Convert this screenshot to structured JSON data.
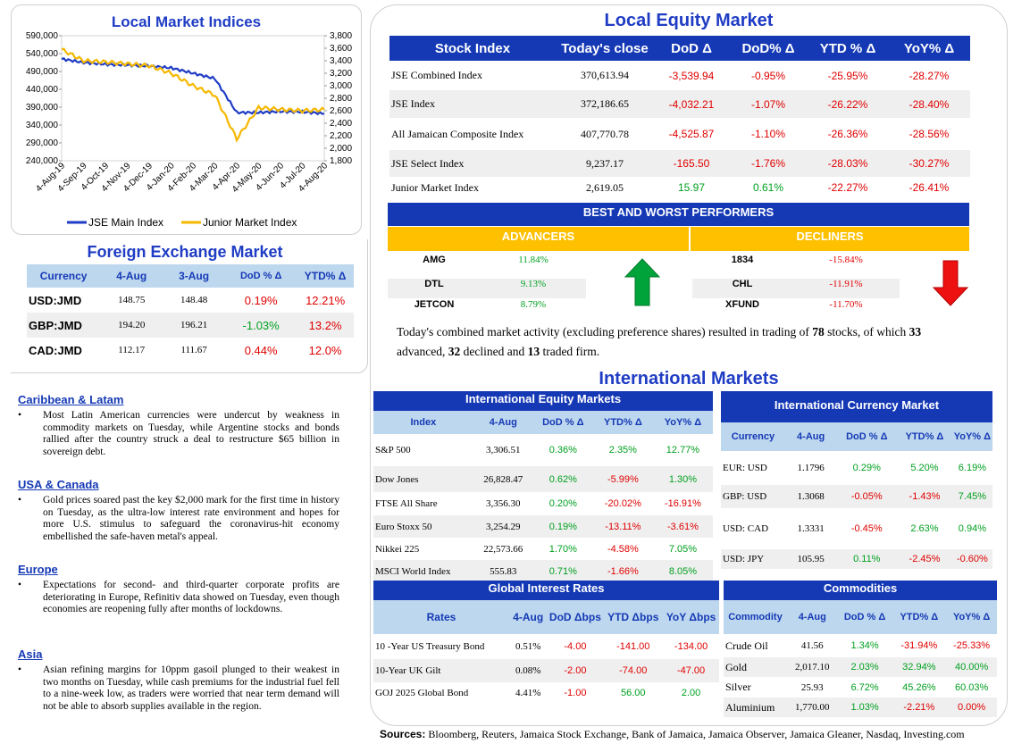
{
  "local_indices": {
    "title": "Local Market Indices",
    "legend": [
      "JSE Main Index",
      "Junior Market Index"
    ],
    "colors": {
      "main": "#1f3cc4",
      "junior": "#f5b800"
    }
  },
  "chart_data": {
    "type": "line",
    "title": "Local Market Indices",
    "x": [
      "4-Aug-19",
      "4-Sep-19",
      "4-Oct-19",
      "4-Nov-19",
      "4-Dec-19",
      "4-Jan-20",
      "4-Feb-20",
      "4-Mar-20",
      "4-Apr-20",
      "4-May-20",
      "4-Jun-20",
      "4-Jul-20",
      "4-Aug-20"
    ],
    "y_left_ticks": [
      "590,000",
      "540,000",
      "490,000",
      "440,000",
      "390,000",
      "340,000",
      "290,000",
      "240,000"
    ],
    "y_right_ticks": [
      "3,800",
      "3,600",
      "3,400",
      "3,200",
      "3,000",
      "2,800",
      "2,600",
      "2,400",
      "2,200",
      "2,000",
      "1,800"
    ],
    "ylim_left": [
      240000,
      590000
    ],
    "ylim_right": [
      1800,
      3800
    ],
    "series": [
      {
        "name": "JSE Main Index",
        "axis": "left",
        "values": [
          525000,
          515000,
          510000,
          508000,
          505000,
          500000,
          485000,
          470000,
          375000,
          375000,
          378000,
          377000,
          372000
        ]
      },
      {
        "name": "Junior Market Index",
        "axis": "right",
        "values": [
          3580,
          3400,
          3380,
          3350,
          3320,
          3200,
          3000,
          2850,
          2150,
          2650,
          2620,
          2600,
          2620
        ]
      }
    ]
  },
  "fx": {
    "title": "Foreign Exchange Market",
    "headers": [
      "Currency",
      "4-Aug",
      "3-Aug",
      "DoD % Δ",
      "YTD% Δ"
    ],
    "rows": [
      {
        "cur": "USD:JMD",
        "a": "148.75",
        "b": "148.48",
        "dod": "0.19%",
        "ytd": "12.21%",
        "dod_s": "neg",
        "ytd_s": "neg"
      },
      {
        "cur": "GBP:JMD",
        "a": "194.20",
        "b": "196.21",
        "dod": "-1.03%",
        "ytd": "13.2%",
        "dod_s": "pos",
        "ytd_s": "neg"
      },
      {
        "cur": "CAD:JMD",
        "a": "112.17",
        "b": "111.67",
        "dod": "0.44%",
        "ytd": "12.0%",
        "dod_s": "neg",
        "ytd_s": "neg"
      }
    ]
  },
  "news": [
    {
      "heading": "Caribbean & Latam",
      "text": "Most Latin American currencies were undercut by weakness in commodity markets on Tuesday, while Argentine stocks and bonds rallied after the country struck a deal to restructure $65 billion in sovereign debt."
    },
    {
      "heading": "USA & Canada",
      "text": "Gold prices soared past the key $2,000 mark for the first time in history on Tuesday, as the ultra-low interest rate environment and hopes for more U.S. stimulus to safeguard the coronavirus-hit economy embellished the safe-haven metal's appeal."
    },
    {
      "heading": "Europe",
      "text": "Expectations for second- and third-quarter corporate profits are deteriorating in Europe, Refinitiv data showed on Tuesday, even though economies are reopening fully after months of lockdowns."
    },
    {
      "heading": "Asia",
      "text": "Asian refining margins for 10ppm gasoil plunged to their weakest in two months on Tuesday, while cash premiums for the industrial fuel fell to a nine-week low, as traders were worried that near term demand will not be able to absorb supplies available in the region."
    }
  ],
  "equity": {
    "title": "Local Equity Market",
    "headers": [
      "Stock Index",
      "Today's close",
      "DoD  Δ",
      "DoD% Δ",
      "YTD % Δ",
      "YoY% Δ"
    ],
    "rows": [
      {
        "name": "JSE Combined Index",
        "close": "370,613.94",
        "dod": "-3,539.94",
        "dodp": "-0.95%",
        "ytd": "-25.95%",
        "yoy": "-28.27%",
        "s": "neg"
      },
      {
        "name": "JSE Index",
        "close": "372,186.65",
        "dod": "-4,032.21",
        "dodp": "-1.07%",
        "ytd": "-26.22%",
        "yoy": "-28.40%",
        "s": "neg"
      },
      {
        "name": "All Jamaican Composite Index",
        "close": "407,770.78",
        "dod": "-4,525.87",
        "dodp": "-1.10%",
        "ytd": "-26.36%",
        "yoy": "-28.56%",
        "s": "neg"
      },
      {
        "name": "JSE Select Index",
        "close": "9,237.17",
        "dod": "-165.50",
        "dodp": "-1.76%",
        "ytd": "-28.03%",
        "yoy": "-30.27%",
        "s": "neg"
      },
      {
        "name": "Junior Market Index",
        "close": "2,619.05",
        "dod": "15.97",
        "dodp": "0.61%",
        "ytd": "-22.27%",
        "yoy": "-26.41%",
        "s": "pos"
      }
    ]
  },
  "performers": {
    "title": "BEST AND WORST PERFORMERS",
    "adv_label": "ADVANCERS",
    "dec_label": "DECLINERS",
    "advancers": [
      {
        "sym": "AMG",
        "pct": "11.84%"
      },
      {
        "sym": "DTL",
        "pct": "9.13%"
      },
      {
        "sym": "JETCON",
        "pct": "8.79%"
      }
    ],
    "decliners": [
      {
        "sym": "1834",
        "pct": "-15.84%"
      },
      {
        "sym": "CHL",
        "pct": "-11.91%"
      },
      {
        "sym": "XFUND",
        "pct": "-11.70%"
      }
    ]
  },
  "activity": {
    "p1": "Today's combined market activity (excluding preference shares) resulted in trading of ",
    "stocks": "78",
    "p2": " stocks, of which ",
    "adv": "33",
    "p3": " advanced, ",
    "dec": "32",
    "p4": " declined and ",
    "firm": "13",
    "p5": " traded firm."
  },
  "intl": {
    "title": "International Markets",
    "equity": {
      "title": "International Equity Markets",
      "headers": [
        "Index",
        "4-Aug",
        "DoD % Δ",
        "YTD% Δ",
        "YoY% Δ"
      ],
      "rows": [
        {
          "n": "S&P 500",
          "v": "3,306.51",
          "d": "0.36%",
          "y": "2.35%",
          "yy": "12.77%",
          "ds": "pos",
          "ys": "pos",
          "yys": "pos"
        },
        {
          "n": "Dow Jones",
          "v": "26,828.47",
          "d": "0.62%",
          "y": "-5.99%",
          "yy": "1.30%",
          "ds": "pos",
          "ys": "neg",
          "yys": "pos"
        },
        {
          "n": "FTSE All Share",
          "v": "3,356.30",
          "d": "0.20%",
          "y": "-20.02%",
          "yy": "-16.91%",
          "ds": "pos",
          "ys": "neg",
          "yys": "neg"
        },
        {
          "n": "Euro Stoxx 50",
          "v": "3,254.29",
          "d": "0.19%",
          "y": "-13.11%",
          "yy": "-3.61%",
          "ds": "pos",
          "ys": "neg",
          "yys": "neg"
        },
        {
          "n": "Nikkei 225",
          "v": "22,573.66",
          "d": "1.70%",
          "y": "-4.58%",
          "yy": "7.05%",
          "ds": "pos",
          "ys": "neg",
          "yys": "pos"
        },
        {
          "n": "MSCI World Index",
          "v": "555.83",
          "d": "0.71%",
          "y": "-1.66%",
          "yy": "8.05%",
          "ds": "pos",
          "ys": "neg",
          "yys": "pos"
        }
      ]
    },
    "currency": {
      "title": "International Currency Market",
      "headers": [
        "Currency",
        "4-Aug",
        "DoD % Δ",
        "YTD% Δ",
        "YoY% Δ"
      ],
      "rows": [
        {
          "n": "EUR: USD",
          "v": "1.1796",
          "d": "0.29%",
          "y": "5.20%",
          "yy": "6.19%",
          "ds": "pos",
          "ys": "pos",
          "yys": "pos"
        },
        {
          "n": "GBP: USD",
          "v": "1.3068",
          "d": "-0.05%",
          "y": "-1.43%",
          "yy": "7.45%",
          "ds": "neg",
          "ys": "neg",
          "yys": "pos"
        },
        {
          "n": "USD: CAD",
          "v": "1.3331",
          "d": "-0.45%",
          "y": "2.63%",
          "yy": "0.94%",
          "ds": "neg",
          "ys": "pos",
          "yys": "pos"
        },
        {
          "n": "USD: JPY",
          "v": "105.95",
          "d": "0.11%",
          "y": "-2.45%",
          "yy": "-0.60%",
          "ds": "pos",
          "ys": "neg",
          "yys": "neg"
        }
      ]
    },
    "rates": {
      "title": "Global Interest Rates",
      "headers": [
        "Rates",
        "4-Aug",
        "DoD Δbps",
        "YTD Δbps",
        "YoY Δbps"
      ],
      "rows": [
        {
          "n": "10 -Year US Treasury Bond",
          "v": "0.51%",
          "d": "-4.00",
          "y": "-141.00",
          "yy": "-134.00",
          "ds": "neg",
          "ys": "neg",
          "yys": "neg"
        },
        {
          "n": "10-Year UK Gilt",
          "v": "0.08%",
          "d": "-2.00",
          "y": "-74.00",
          "yy": "-47.00",
          "ds": "neg",
          "ys": "neg",
          "yys": "neg"
        },
        {
          "n": "GOJ 2025 Global Bond",
          "v": "4.41%",
          "d": "-1.00",
          "y": "56.00",
          "yy": "2.00",
          "ds": "neg",
          "ys": "pos",
          "yys": "pos"
        }
      ]
    },
    "commodities": {
      "title": "Commodities",
      "headers": [
        "Commodity",
        "4-Aug",
        "DoD % Δ",
        "YTD% Δ",
        "YoY% Δ"
      ],
      "rows": [
        {
          "n": "Crude Oil",
          "v": "41.56",
          "d": "1.34%",
          "y": "-31.94%",
          "yy": "-25.33%",
          "ds": "pos",
          "ys": "neg",
          "yys": "neg"
        },
        {
          "n": "Gold",
          "v": "2,017.10",
          "d": "2.03%",
          "y": "32.94%",
          "yy": "40.00%",
          "ds": "pos",
          "ys": "pos",
          "yys": "pos"
        },
        {
          "n": "Silver",
          "v": "25.93",
          "d": "6.72%",
          "y": "45.26%",
          "yy": "60.03%",
          "ds": "pos",
          "ys": "pos",
          "yys": "pos"
        },
        {
          "n": "Aluminium",
          "v": "1,770.00",
          "d": "1.03%",
          "y": "-2.21%",
          "yy": "0.00%",
          "ds": "pos",
          "ys": "neg",
          "yys": "neg"
        }
      ]
    }
  },
  "sources": {
    "label": "Sources:",
    "text": " Bloomberg, Reuters, Jamaica Stock Exchange, Bank of Jamaica, Jamaica Observer, Jamaica Gleaner, Nasdaq, Investing.com"
  }
}
